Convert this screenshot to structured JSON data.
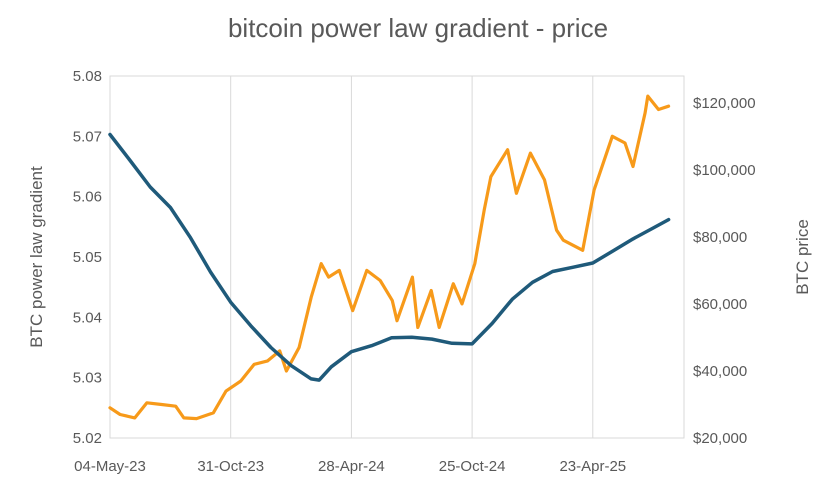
{
  "chart_data": {
    "type": "line",
    "title": "bitcoin power law gradient - price",
    "xlabel": "",
    "ylabel_left": "BTC power law gradient",
    "ylabel_right": "BTC price",
    "x_tick_labels": [
      "04-May-23",
      "31-Oct-23",
      "28-Apr-24",
      "25-Oct-24",
      "23-Apr-25"
    ],
    "y_left_ticks": [
      "5.02",
      "5.03",
      "5.04",
      "5.05",
      "5.06",
      "5.07",
      "5.08"
    ],
    "y_right_ticks": [
      "$20,000",
      "$40,000",
      "$60,000",
      "$80,000",
      "$100,000",
      "$120,000"
    ],
    "ylim_left": [
      5.02,
      5.08
    ],
    "ylim_right": [
      20000,
      128000
    ],
    "grid": "vertical",
    "colors": {
      "gradient": "#1f5a7a",
      "price": "#f79a1a",
      "grid": "#d9d9d9",
      "text": "#595959"
    },
    "series": [
      {
        "axis": "left",
        "points": [
          [
            "2023-05-04",
            5.0703
          ],
          [
            "2023-06-03",
            5.066
          ],
          [
            "2023-07-03",
            5.0616
          ],
          [
            "2023-08-02",
            5.0582
          ],
          [
            "2023-09-01",
            5.0532
          ],
          [
            "2023-10-01",
            5.0475
          ],
          [
            "2023-10-31",
            5.0425
          ],
          [
            "2023-11-30",
            5.0386
          ],
          [
            "2023-12-30",
            5.035
          ],
          [
            "2024-01-29",
            5.032
          ],
          [
            "2024-02-28",
            5.0298
          ],
          [
            "2024-03-11",
            5.0296
          ],
          [
            "2024-03-29",
            5.0318
          ],
          [
            "2024-04-28",
            5.0343
          ],
          [
            "2024-05-28",
            5.0353
          ],
          [
            "2024-06-27",
            5.0366
          ],
          [
            "2024-07-27",
            5.0367
          ],
          [
            "2024-08-26",
            5.0364
          ],
          [
            "2024-09-25",
            5.0357
          ],
          [
            "2024-10-25",
            5.0356
          ],
          [
            "2024-11-24",
            5.039
          ],
          [
            "2024-12-24",
            5.043
          ],
          [
            "2025-01-23",
            5.0458
          ],
          [
            "2025-02-22",
            5.0476
          ],
          [
            "2025-03-24",
            5.0483
          ],
          [
            "2025-04-23",
            5.049
          ],
          [
            "2025-05-23",
            5.051
          ],
          [
            "2025-06-22",
            5.053
          ],
          [
            "2025-07-22",
            5.0548
          ],
          [
            "2025-08-14",
            5.0562
          ]
        ]
      },
      {
        "axis": "right",
        "points": [
          [
            "2023-05-04",
            29000
          ],
          [
            "2023-05-19",
            27000
          ],
          [
            "2023-06-10",
            26000
          ],
          [
            "2023-06-28",
            30500
          ],
          [
            "2023-07-20",
            30000
          ],
          [
            "2023-08-10",
            29500
          ],
          [
            "2023-08-22",
            26000
          ],
          [
            "2023-09-10",
            25800
          ],
          [
            "2023-10-05",
            27500
          ],
          [
            "2023-10-24",
            34000
          ],
          [
            "2023-11-15",
            37000
          ],
          [
            "2023-12-05",
            42000
          ],
          [
            "2023-12-25",
            43000
          ],
          [
            "2024-01-12",
            46000
          ],
          [
            "2024-01-22",
            40000
          ],
          [
            "2024-02-10",
            47000
          ],
          [
            "2024-02-28",
            62000
          ],
          [
            "2024-03-14",
            72000
          ],
          [
            "2024-03-25",
            68000
          ],
          [
            "2024-04-10",
            70000
          ],
          [
            "2024-04-30",
            58000
          ],
          [
            "2024-05-21",
            70000
          ],
          [
            "2024-06-10",
            67000
          ],
          [
            "2024-06-28",
            61000
          ],
          [
            "2024-07-05",
            55000
          ],
          [
            "2024-07-28",
            68000
          ],
          [
            "2024-08-05",
            53000
          ],
          [
            "2024-08-25",
            64000
          ],
          [
            "2024-09-06",
            53000
          ],
          [
            "2024-09-27",
            66000
          ],
          [
            "2024-10-10",
            60000
          ],
          [
            "2024-10-29",
            72000
          ],
          [
            "2024-11-12",
            88000
          ],
          [
            "2024-11-22",
            98000
          ],
          [
            "2024-12-17",
            106000
          ],
          [
            "2024-12-30",
            93000
          ],
          [
            "2025-01-20",
            105000
          ],
          [
            "2025-02-10",
            97000
          ],
          [
            "2025-02-28",
            82000
          ],
          [
            "2025-03-10",
            79000
          ],
          [
            "2025-04-08",
            76000
          ],
          [
            "2025-04-25",
            94000
          ],
          [
            "2025-05-22",
            110000
          ],
          [
            "2025-06-10",
            108000
          ],
          [
            "2025-06-22",
            101000
          ],
          [
            "2025-07-10",
            117000
          ],
          [
            "2025-07-14",
            122000
          ],
          [
            "2025-07-30",
            118000
          ],
          [
            "2025-08-14",
            119000
          ]
        ]
      }
    ]
  }
}
